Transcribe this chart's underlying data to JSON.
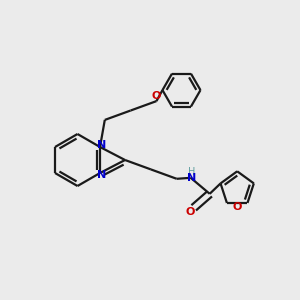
{
  "bg_color": "#ebebeb",
  "bond_color": "#1a1a1a",
  "N_color": "#0000cc",
  "O_color": "#cc0000",
  "H_color": "#5f9ea0",
  "lw": 1.6,
  "figsize": [
    3.0,
    3.0
  ],
  "dpi": 100,
  "xlim": [
    0.0,
    6.0
  ],
  "ylim": [
    0.0,
    6.0
  ]
}
